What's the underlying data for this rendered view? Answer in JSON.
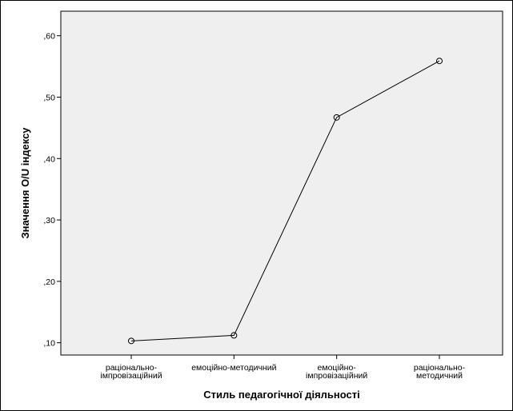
{
  "chart_data": {
    "type": "line",
    "categories": [
      [
        "раціонально-",
        "імпровізаційний"
      ],
      [
        "емоційно-методичний"
      ],
      [
        "емоційно-",
        "імпровізаційний"
      ],
      [
        "раціонально-",
        "методичний"
      ]
    ],
    "values": [
      0.103,
      0.112,
      0.467,
      0.559
    ],
    "xlabel": "Стиль педагогічної діяльності",
    "ylabel": "Значення O/U індексу",
    "ylim": [
      0.08,
      0.64
    ],
    "yticks": [
      0.1,
      0.2,
      0.3,
      0.4,
      0.5,
      0.6
    ],
    "ytick_labels": [
      ",10",
      ",20",
      ",30",
      ",40",
      ",50",
      ",60"
    ],
    "grid": false,
    "plot_background": "#efefef",
    "line_color": "#000000"
  }
}
